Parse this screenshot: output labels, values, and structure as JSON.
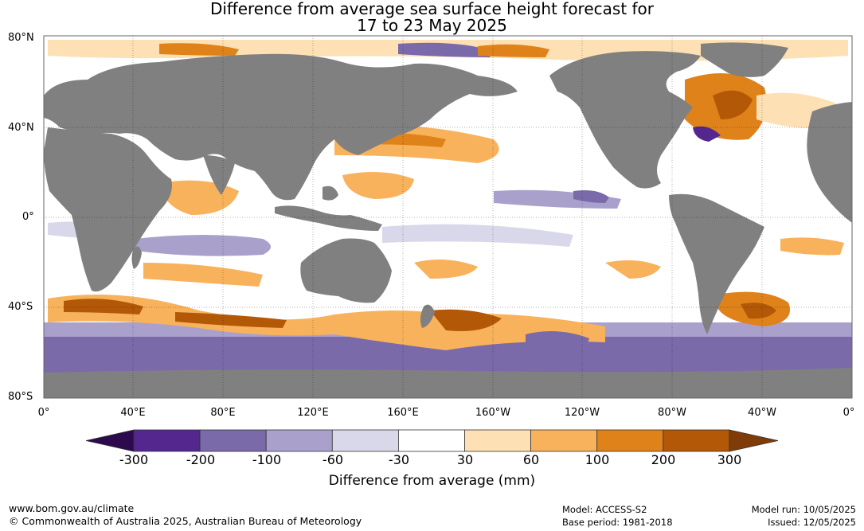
{
  "title_line1": "Difference from average sea surface height forecast for",
  "title_line2": "17 to 23 May 2025",
  "lat_labels": [
    "80°N",
    "40°N",
    "0°",
    "40°S",
    "80°S"
  ],
  "lon_labels": [
    "0°",
    "40°E",
    "80°E",
    "120°E",
    "160°E",
    "160°W",
    "120°W",
    "80°W",
    "40°W",
    "0°"
  ],
  "colorbar": {
    "labels": [
      "-300",
      "-200",
      "-100",
      "-60",
      "-30",
      "30",
      "60",
      "100",
      "200",
      "300"
    ],
    "colors": [
      "#2d0a4e",
      "#54278f",
      "#7a6aaa",
      "#a9a1cc",
      "#d8d8ea",
      "#ffffff",
      "#fde0b4",
      "#f8b25c",
      "#e0821a",
      "#b35806",
      "#7f3b08"
    ],
    "title": "Difference from average (mm)"
  },
  "land_color": "#808080",
  "footer": {
    "url": "www.bom.gov.au/climate",
    "copyright": "© Commonwealth of Australia 2025, Australian Bureau of Meteorology",
    "model": "Model: ACCESS-S2",
    "base_period": "Base period: 1981-2018",
    "model_run": "Model run: 10/05/2025",
    "issued": "Issued: 12/05/2025"
  }
}
